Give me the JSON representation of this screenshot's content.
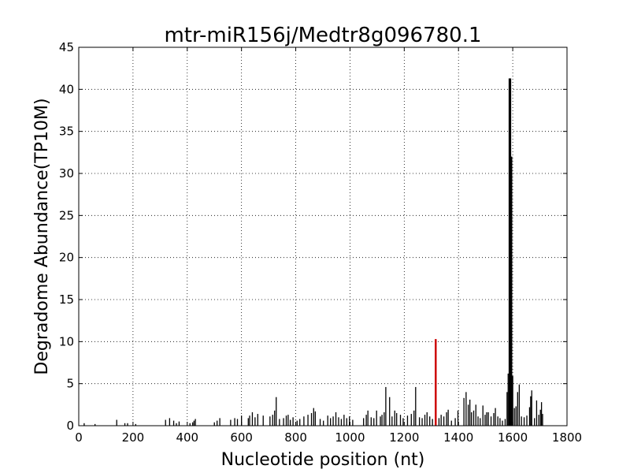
{
  "chart_data": {
    "type": "bar",
    "title": "mtr-miR156j/Medtr8g096780.1",
    "xlabel": "Nucleotide position (nt)",
    "ylabel": "Degradome Abundance(TP10M)",
    "xlim": [
      0,
      1800
    ],
    "ylim": [
      0,
      45
    ],
    "xticks": [
      "0",
      "200",
      "400",
      "600",
      "800",
      "1000",
      "1200",
      "1400",
      "1600",
      "1800"
    ],
    "yticks": [
      "0",
      "5",
      "10",
      "15",
      "20",
      "25",
      "30",
      "35",
      "40",
      "45"
    ],
    "grid": true,
    "colors": {
      "bars": "#000000",
      "target": "#cc0000"
    },
    "series": [
      {
        "values": [
          [
            20,
            0.3
          ],
          [
            60,
            0.2
          ],
          [
            140,
            0.7
          ],
          [
            170,
            0.3
          ],
          [
            180,
            0.3
          ],
          [
            210,
            0.2
          ],
          [
            320,
            0.7
          ],
          [
            335,
            0.9
          ],
          [
            350,
            0.6
          ],
          [
            360,
            0.3
          ],
          [
            370,
            0.5
          ],
          [
            410,
            0.3
          ],
          [
            420,
            0.4
          ],
          [
            425,
            0.6
          ],
          [
            430,
            0.8
          ],
          [
            500,
            0.4
          ],
          [
            510,
            0.6
          ],
          [
            520,
            0.9
          ],
          [
            560,
            0.7
          ],
          [
            575,
            0.9
          ],
          [
            585,
            0.8
          ],
          [
            600,
            1.2
          ],
          [
            625,
            0.9
          ],
          [
            630,
            1.2
          ],
          [
            640,
            1.6
          ],
          [
            650,
            1.0
          ],
          [
            660,
            1.4
          ],
          [
            680,
            1.2
          ],
          [
            705,
            1.1
          ],
          [
            715,
            1.3
          ],
          [
            722,
            1.8
          ],
          [
            728,
            3.4
          ],
          [
            740,
            0.8
          ],
          [
            755,
            0.9
          ],
          [
            765,
            1.2
          ],
          [
            772,
            1.3
          ],
          [
            780,
            0.7
          ],
          [
            790,
            1.0
          ],
          [
            805,
            0.6
          ],
          [
            815,
            0.8
          ],
          [
            830,
            1.1
          ],
          [
            845,
            1.3
          ],
          [
            858,
            1.5
          ],
          [
            866,
            2.1
          ],
          [
            872,
            1.7
          ],
          [
            890,
            0.8
          ],
          [
            902,
            0.6
          ],
          [
            918,
            1.2
          ],
          [
            928,
            0.9
          ],
          [
            938,
            1.1
          ],
          [
            948,
            1.6
          ],
          [
            958,
            1.0
          ],
          [
            968,
            0.8
          ],
          [
            978,
            1.3
          ],
          [
            988,
            0.9
          ],
          [
            998,
            1.1
          ],
          [
            1010,
            0.7
          ],
          [
            1050,
            0.9
          ],
          [
            1060,
            1.3
          ],
          [
            1066,
            1.8
          ],
          [
            1078,
            1.0
          ],
          [
            1088,
            0.9
          ],
          [
            1098,
            1.8
          ],
          [
            1112,
            1.1
          ],
          [
            1118,
            1.3
          ],
          [
            1126,
            1.6
          ],
          [
            1132,
            4.6
          ],
          [
            1146,
            3.4
          ],
          [
            1155,
            1.1
          ],
          [
            1165,
            1.8
          ],
          [
            1172,
            1.5
          ],
          [
            1186,
            1.3
          ],
          [
            1196,
            0.9
          ],
          [
            1212,
            1.2
          ],
          [
            1226,
            1.4
          ],
          [
            1236,
            1.8
          ],
          [
            1242,
            4.6
          ],
          [
            1256,
            1.0
          ],
          [
            1266,
            0.9
          ],
          [
            1276,
            1.3
          ],
          [
            1284,
            1.6
          ],
          [
            1294,
            1.1
          ],
          [
            1304,
            0.8
          ],
          [
            1328,
            0.9
          ],
          [
            1336,
            1.3
          ],
          [
            1346,
            1.1
          ],
          [
            1356,
            1.6
          ],
          [
            1362,
            1.9
          ],
          [
            1374,
            0.6
          ],
          [
            1388,
            0.9
          ],
          [
            1398,
            1.8
          ],
          [
            1420,
            3.3
          ],
          [
            1428,
            4.0
          ],
          [
            1436,
            2.5
          ],
          [
            1442,
            3.1
          ],
          [
            1448,
            1.6
          ],
          [
            1456,
            1.8
          ],
          [
            1464,
            2.5
          ],
          [
            1472,
            1.1
          ],
          [
            1480,
            0.9
          ],
          [
            1490,
            2.4
          ],
          [
            1498,
            1.3
          ],
          [
            1504,
            1.6
          ],
          [
            1510,
            1.6
          ],
          [
            1520,
            1.1
          ],
          [
            1530,
            1.5
          ],
          [
            1536,
            2.1
          ],
          [
            1545,
            1.1
          ],
          [
            1553,
            0.9
          ],
          [
            1562,
            0.6
          ],
          [
            1572,
            0.8
          ],
          [
            1579,
            4.0
          ],
          [
            1583,
            6.2
          ],
          [
            1588,
            41.3
          ],
          [
            1591,
            41.3
          ],
          [
            1595,
            32.0
          ],
          [
            1600,
            5.9
          ],
          [
            1606,
            2.1
          ],
          [
            1612,
            2.3
          ],
          [
            1618,
            4.0
          ],
          [
            1624,
            4.9
          ],
          [
            1632,
            1.1
          ],
          [
            1642,
            1.0
          ],
          [
            1652,
            1.2
          ],
          [
            1662,
            2.2
          ],
          [
            1666,
            3.5
          ],
          [
            1670,
            4.2
          ],
          [
            1680,
            0.9
          ],
          [
            1688,
            3.0
          ],
          [
            1696,
            1.3
          ],
          [
            1702,
            1.9
          ],
          [
            1706,
            2.8
          ],
          [
            1710,
            1.4
          ]
        ]
      }
    ],
    "highlight": {
      "x": 1316,
      "y": 10.3
    }
  }
}
